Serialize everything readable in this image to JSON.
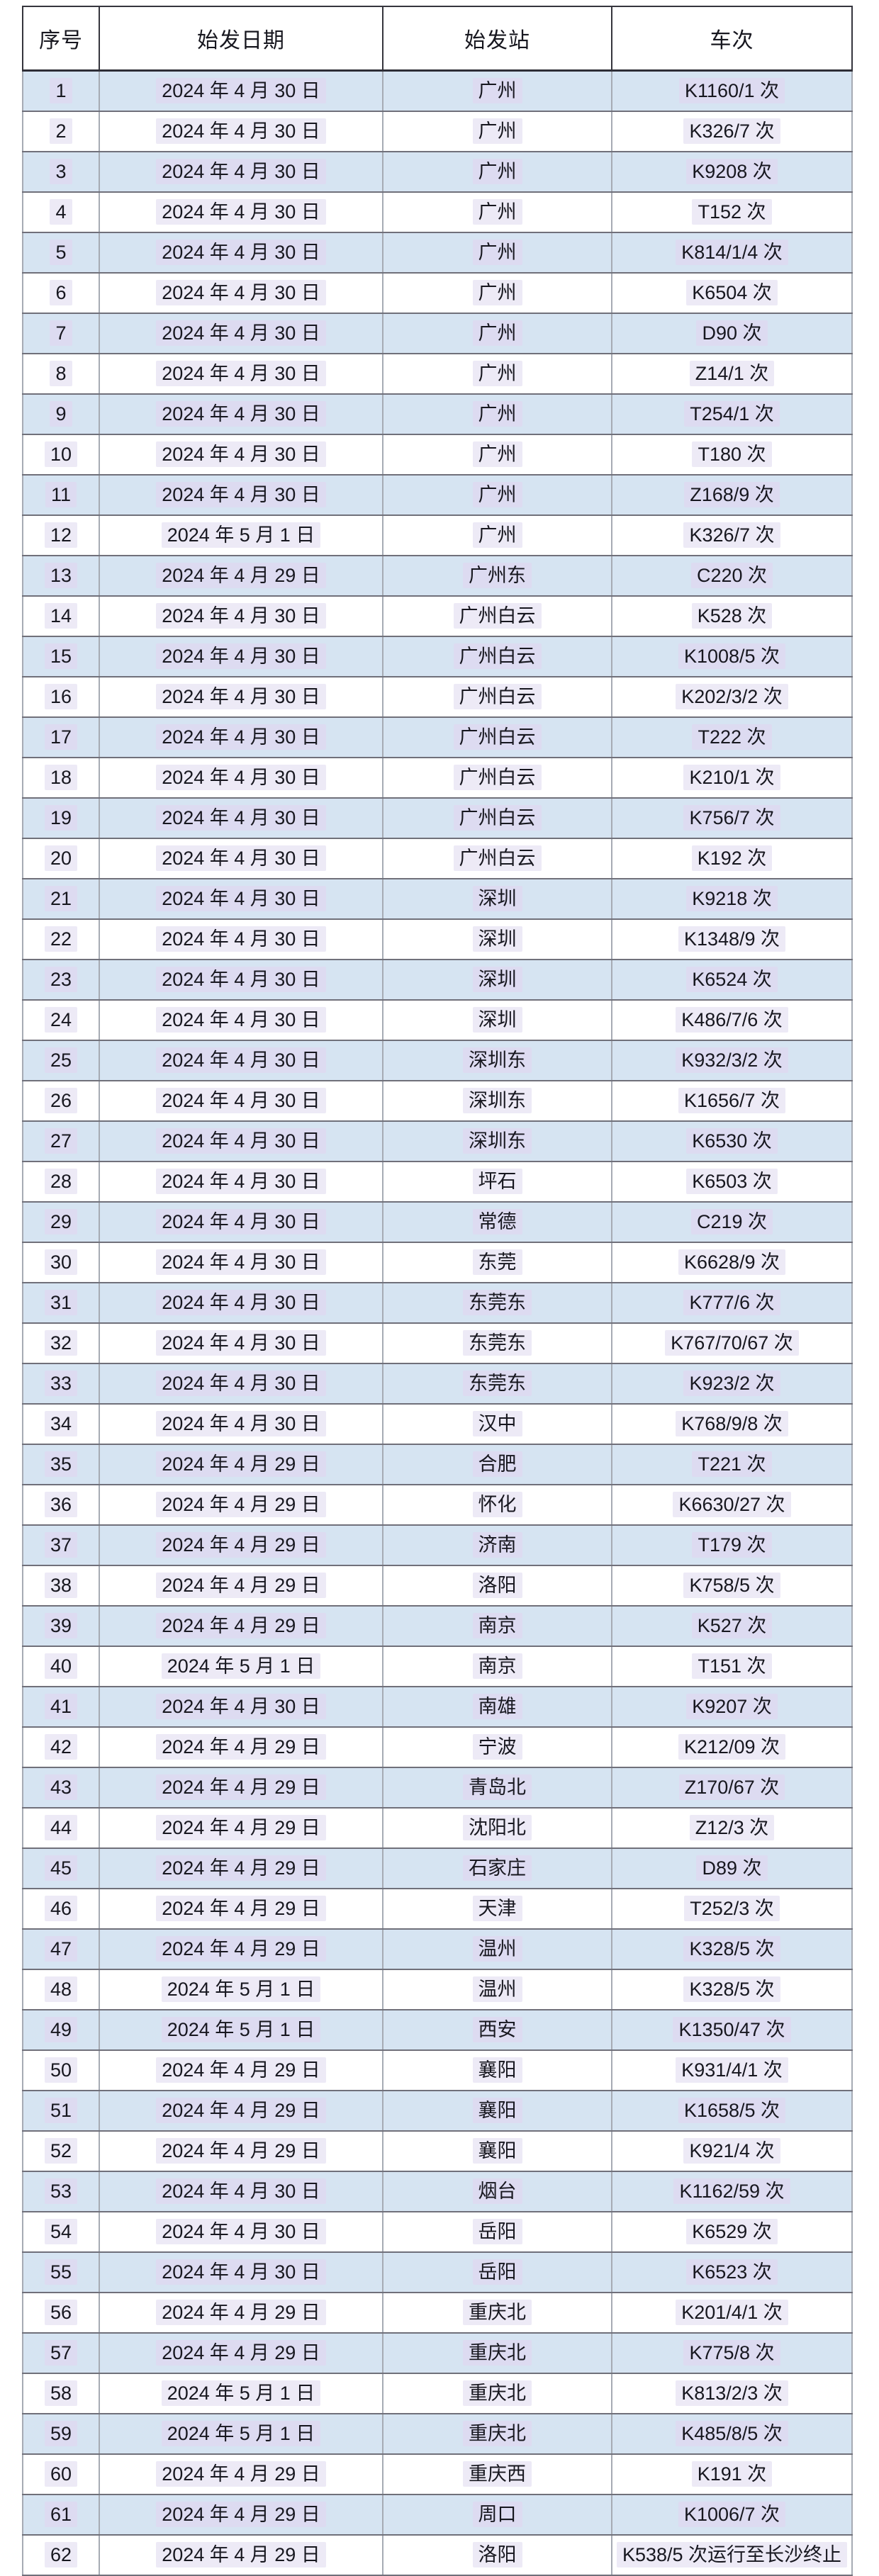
{
  "page": {
    "background": "#ffffff"
  },
  "colors": {
    "row_alt_blue": "#d6e4f2",
    "row_white": "#ffffff",
    "text_highlight_lavender": "#dfd8f0",
    "grid_dark": "#35353d",
    "grid_gray": "#a6abb4",
    "text": "#17171f"
  },
  "table": {
    "columns": [
      {
        "key": "index",
        "label": "序号"
      },
      {
        "key": "date",
        "label": "始发日期"
      },
      {
        "key": "station",
        "label": "始发站"
      },
      {
        "key": "train",
        "label": "车次"
      }
    ],
    "rows": [
      {
        "index": "1",
        "date": "2024 年 4 月 30 日",
        "station": "广州",
        "train": "K1160/1 次"
      },
      {
        "index": "2",
        "date": "2024 年 4 月 30 日",
        "station": "广州",
        "train": "K326/7 次"
      },
      {
        "index": "3",
        "date": "2024 年 4 月 30 日",
        "station": "广州",
        "train": "K9208 次"
      },
      {
        "index": "4",
        "date": "2024 年 4 月 30 日",
        "station": "广州",
        "train": "T152 次"
      },
      {
        "index": "5",
        "date": "2024 年 4 月 30 日",
        "station": "广州",
        "train": "K814/1/4 次"
      },
      {
        "index": "6",
        "date": "2024 年 4 月 30 日",
        "station": "广州",
        "train": "K6504 次"
      },
      {
        "index": "7",
        "date": "2024 年 4 月 30 日",
        "station": "广州",
        "train": "D90 次"
      },
      {
        "index": "8",
        "date": "2024 年 4 月 30 日",
        "station": "广州",
        "train": "Z14/1 次"
      },
      {
        "index": "9",
        "date": "2024 年 4 月 30 日",
        "station": "广州",
        "train": "T254/1 次"
      },
      {
        "index": "10",
        "date": "2024 年 4 月 30 日",
        "station": "广州",
        "train": "T180 次"
      },
      {
        "index": "11",
        "date": "2024 年 4 月 30 日",
        "station": "广州",
        "train": "Z168/9 次"
      },
      {
        "index": "12",
        "date": "2024 年 5 月 1 日",
        "station": "广州",
        "train": "K326/7 次"
      },
      {
        "index": "13",
        "date": "2024 年 4 月 29 日",
        "station": "广州东",
        "train": "C220 次"
      },
      {
        "index": "14",
        "date": "2024 年 4 月 30 日",
        "station": "广州白云",
        "train": "K528 次"
      },
      {
        "index": "15",
        "date": "2024 年 4 月 30 日",
        "station": "广州白云",
        "train": "K1008/5 次"
      },
      {
        "index": "16",
        "date": "2024 年 4 月 30 日",
        "station": "广州白云",
        "train": "K202/3/2 次"
      },
      {
        "index": "17",
        "date": "2024 年 4 月 30 日",
        "station": "广州白云",
        "train": "T222 次"
      },
      {
        "index": "18",
        "date": "2024 年 4 月 30 日",
        "station": "广州白云",
        "train": "K210/1 次"
      },
      {
        "index": "19",
        "date": "2024 年 4 月 30 日",
        "station": "广州白云",
        "train": "K756/7 次"
      },
      {
        "index": "20",
        "date": "2024 年 4 月 30 日",
        "station": "广州白云",
        "train": "K192 次"
      },
      {
        "index": "21",
        "date": "2024 年 4 月 30 日",
        "station": "深圳",
        "train": "K9218 次"
      },
      {
        "index": "22",
        "date": "2024 年 4 月 30 日",
        "station": "深圳",
        "train": "K1348/9 次"
      },
      {
        "index": "23",
        "date": "2024 年 4 月 30 日",
        "station": "深圳",
        "train": "K6524 次"
      },
      {
        "index": "24",
        "date": "2024 年 4 月 30 日",
        "station": "深圳",
        "train": "K486/7/6 次"
      },
      {
        "index": "25",
        "date": "2024 年 4 月 30 日",
        "station": "深圳东",
        "train": "K932/3/2 次"
      },
      {
        "index": "26",
        "date": "2024 年 4 月 30 日",
        "station": "深圳东",
        "train": "K1656/7 次"
      },
      {
        "index": "27",
        "date": "2024 年 4 月 30 日",
        "station": "深圳东",
        "train": "K6530 次"
      },
      {
        "index": "28",
        "date": "2024 年 4 月 30 日",
        "station": "坪石",
        "train": "K6503 次"
      },
      {
        "index": "29",
        "date": "2024 年 4 月 30 日",
        "station": "常德",
        "train": "C219 次"
      },
      {
        "index": "30",
        "date": "2024 年 4 月 30 日",
        "station": "东莞",
        "train": "K6628/9 次"
      },
      {
        "index": "31",
        "date": "2024 年 4 月 30 日",
        "station": "东莞东",
        "train": "K777/6 次"
      },
      {
        "index": "32",
        "date": "2024 年 4 月 30 日",
        "station": "东莞东",
        "train": "K767/70/67 次"
      },
      {
        "index": "33",
        "date": "2024 年 4 月 30 日",
        "station": "东莞东",
        "train": "K923/2 次"
      },
      {
        "index": "34",
        "date": "2024 年 4 月 30 日",
        "station": "汉中",
        "train": "K768/9/8 次"
      },
      {
        "index": "35",
        "date": "2024 年 4 月 29 日",
        "station": "合肥",
        "train": "T221 次"
      },
      {
        "index": "36",
        "date": "2024 年 4 月 29 日",
        "station": "怀化",
        "train": "K6630/27 次"
      },
      {
        "index": "37",
        "date": "2024 年 4 月 29 日",
        "station": "济南",
        "train": "T179 次"
      },
      {
        "index": "38",
        "date": "2024 年 4 月 29 日",
        "station": "洛阳",
        "train": "K758/5 次"
      },
      {
        "index": "39",
        "date": "2024 年 4 月 29 日",
        "station": "南京",
        "train": "K527 次"
      },
      {
        "index": "40",
        "date": "2024 年 5 月 1 日",
        "station": "南京",
        "train": "T151 次"
      },
      {
        "index": "41",
        "date": "2024 年 4 月 30 日",
        "station": "南雄",
        "train": "K9207 次"
      },
      {
        "index": "42",
        "date": "2024 年 4 月 29 日",
        "station": "宁波",
        "train": "K212/09 次"
      },
      {
        "index": "43",
        "date": "2024 年 4 月 29 日",
        "station": "青岛北",
        "train": "Z170/67 次"
      },
      {
        "index": "44",
        "date": "2024 年 4 月 29 日",
        "station": "沈阳北",
        "train": "Z12/3 次"
      },
      {
        "index": "45",
        "date": "2024 年 4 月 29 日",
        "station": "石家庄",
        "train": "D89 次"
      },
      {
        "index": "46",
        "date": "2024 年 4 月 29 日",
        "station": "天津",
        "train": "T252/3 次"
      },
      {
        "index": "47",
        "date": "2024 年 4 月 29 日",
        "station": "温州",
        "train": "K328/5 次"
      },
      {
        "index": "48",
        "date": "2024 年 5 月 1 日",
        "station": "温州",
        "train": "K328/5 次"
      },
      {
        "index": "49",
        "date": "2024 年 5 月 1 日",
        "station": "西安",
        "train": "K1350/47 次"
      },
      {
        "index": "50",
        "date": "2024 年 4 月 29 日",
        "station": "襄阳",
        "train": "K931/4/1 次"
      },
      {
        "index": "51",
        "date": "2024 年 4 月 29 日",
        "station": "襄阳",
        "train": "K1658/5 次"
      },
      {
        "index": "52",
        "date": "2024 年 4 月 29 日",
        "station": "襄阳",
        "train": "K921/4 次"
      },
      {
        "index": "53",
        "date": "2024 年 4 月 30 日",
        "station": "烟台",
        "train": "K1162/59 次"
      },
      {
        "index": "54",
        "date": "2024 年 4 月 30 日",
        "station": "岳阳",
        "train": "K6529 次"
      },
      {
        "index": "55",
        "date": "2024 年 4 月 30 日",
        "station": "岳阳",
        "train": "K6523 次"
      },
      {
        "index": "56",
        "date": "2024 年 4 月 29 日",
        "station": "重庆北",
        "train": "K201/4/1 次"
      },
      {
        "index": "57",
        "date": "2024 年 4 月 29 日",
        "station": "重庆北",
        "train": "K775/8 次"
      },
      {
        "index": "58",
        "date": "2024 年 5 月 1 日",
        "station": "重庆北",
        "train": "K813/2/3 次"
      },
      {
        "index": "59",
        "date": "2024 年 5 月 1 日",
        "station": "重庆北",
        "train": "K485/8/5 次"
      },
      {
        "index": "60",
        "date": "2024 年 4 月 29 日",
        "station": "重庆西",
        "train": "K191 次"
      },
      {
        "index": "61",
        "date": "2024 年 4 月 29 日",
        "station": "周口",
        "train": "K1006/7 次"
      },
      {
        "index": "62",
        "date": "2024 年 4 月 29 日",
        "station": "洛阳",
        "train": "K538/5 次运行至长沙终止"
      }
    ]
  }
}
